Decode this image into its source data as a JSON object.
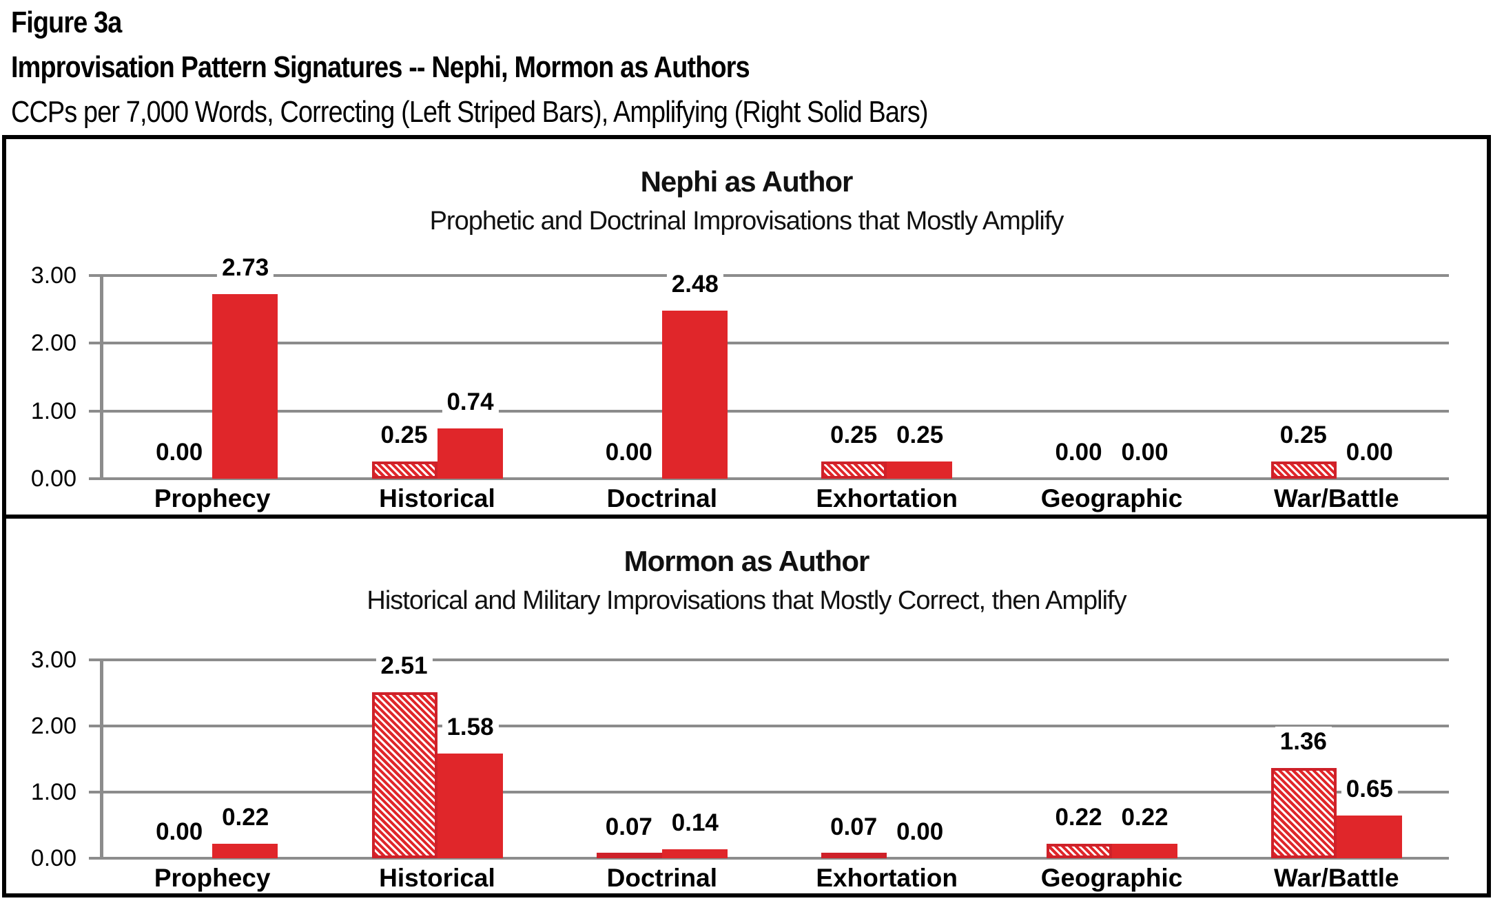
{
  "header": {
    "figure_label": "Figure 3a",
    "title": "Improvisation Pattern Signatures -- Nephi, Mormon as Authors",
    "subtitle": "CCPs per 7,000 Words, Correcting (Left Striped Bars), Amplifying (Right Solid Bars)"
  },
  "colors": {
    "bar_red": "#E0262A",
    "bar_red_border": "#CE2129",
    "gridline_gray": "#8C8C8C",
    "border_black": "#000000"
  },
  "chart_data": [
    {
      "type": "bar",
      "title": "Nephi as Author",
      "subtitle": "Prophetic and Doctrinal Improvisations that Mostly Amplify",
      "categories": [
        "Prophecy",
        "Historical",
        "Doctrinal",
        "Exhortation",
        "Geographic",
        "War/Battle"
      ],
      "series": [
        {
          "name": "Correcting (Left Striped Bars)",
          "style": "striped",
          "values": [
            0.0,
            0.25,
            0.0,
            0.25,
            0.0,
            0.25
          ],
          "labels": [
            "0.00",
            "0.25",
            "0.00",
            "0.25",
            "0.00",
            "0.25"
          ]
        },
        {
          "name": "Amplifying (Right Solid Bars)",
          "style": "solid",
          "values": [
            2.73,
            0.74,
            2.48,
            0.25,
            0.0,
            0.0
          ],
          "labels": [
            "2.73",
            "0.74",
            "2.48",
            "0.25",
            "0.00",
            "0.00"
          ]
        }
      ],
      "ylim": [
        0,
        3
      ],
      "yticks": [
        "0.00",
        "1.00",
        "2.00",
        "3.00"
      ],
      "grid": true,
      "legend": "none"
    },
    {
      "type": "bar",
      "title": "Mormon as Author",
      "subtitle": "Historical and Military Improvisations that Mostly Correct, then Amplify",
      "categories": [
        "Prophecy",
        "Historical",
        "Doctrinal",
        "Exhortation",
        "Geographic",
        "War/Battle"
      ],
      "series": [
        {
          "name": "Correcting (Left Striped Bars)",
          "style": "striped",
          "values": [
            0.0,
            2.51,
            0.07,
            0.07,
            0.22,
            1.36
          ],
          "labels": [
            "0.00",
            "2.51",
            "0.07",
            "0.07",
            "0.22",
            "1.36"
          ]
        },
        {
          "name": "Amplifying (Right Solid Bars)",
          "style": "solid",
          "values": [
            0.22,
            1.58,
            0.14,
            0.0,
            0.22,
            0.65
          ],
          "labels": [
            "0.22",
            "1.58",
            "0.14",
            "0.00",
            "0.22",
            "0.65"
          ]
        }
      ],
      "ylim": [
        0,
        3
      ],
      "yticks": [
        "0.00",
        "1.00",
        "2.00",
        "3.00"
      ],
      "grid": true,
      "legend": "none"
    }
  ]
}
